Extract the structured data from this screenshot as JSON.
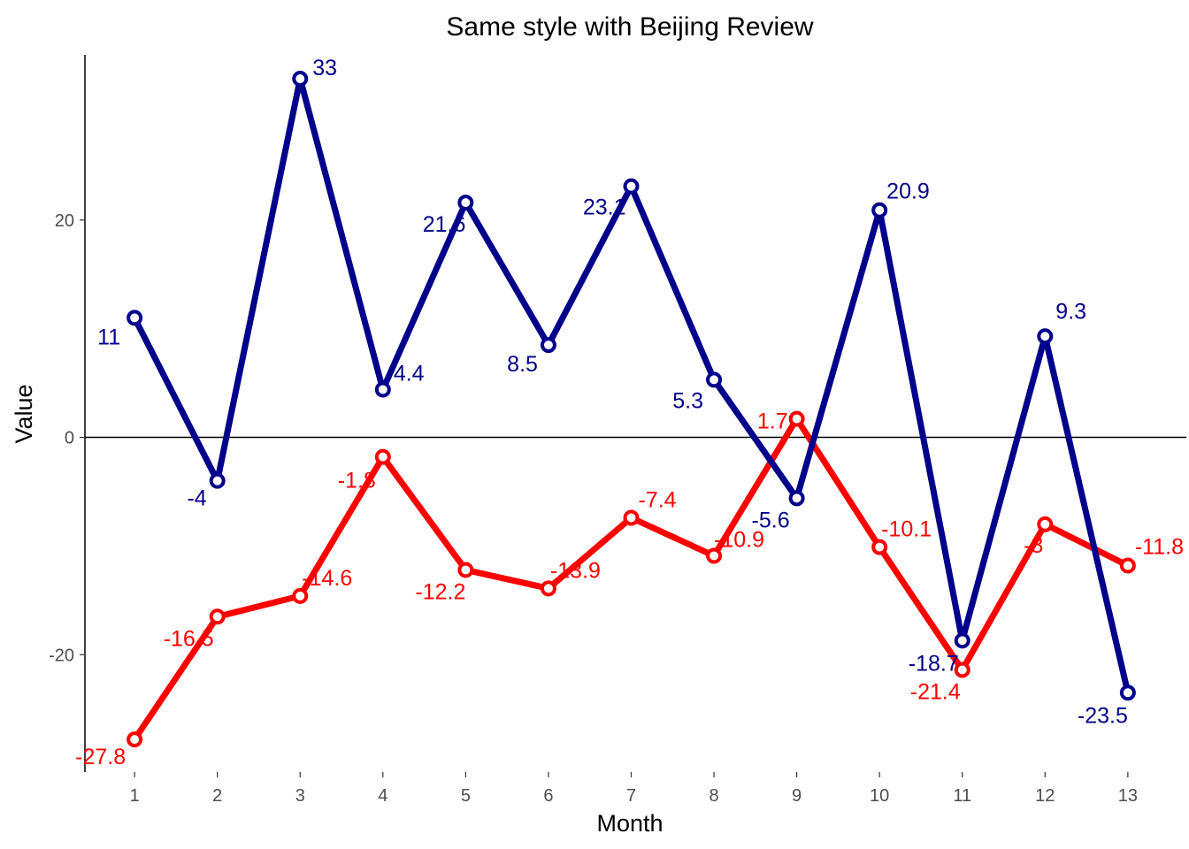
{
  "chart_data": {
    "type": "line",
    "title": "Same style with Beijing Review",
    "xlabel": "Month",
    "ylabel": "Value",
    "x": [
      1,
      2,
      3,
      4,
      5,
      6,
      7,
      8,
      9,
      10,
      11,
      12,
      13
    ],
    "x_tick_labels": [
      "1",
      "2",
      "3",
      "4",
      "5",
      "6",
      "7",
      "8",
      "9",
      "10",
      "11",
      "12",
      "13"
    ],
    "y_ticks": [
      -20,
      0,
      20
    ],
    "y_tick_labels": [
      "-20",
      "0",
      "20"
    ],
    "xlim": [
      0.4,
      13.6
    ],
    "ylim": [
      -30.8,
      35.2
    ],
    "zero_line": true,
    "grid": false,
    "legend": "none",
    "series": [
      {
        "color": "#00008b",
        "values": [
          11,
          -4,
          33,
          4.4,
          21.6,
          8.5,
          23.1,
          5.3,
          -5.6,
          20.9,
          -18.7,
          9.3,
          -23.5
        ],
        "labels": [
          "11",
          "-4",
          "33",
          "4.4",
          "21.6",
          "8.5",
          "23.1",
          "5.3",
          "-5.6",
          "20.9",
          "-18.7",
          "9.3",
          "-23.5"
        ]
      },
      {
        "color": "#ff0000",
        "values": [
          -27.8,
          -16.5,
          -14.6,
          -1.8,
          -12.2,
          -13.9,
          -7.4,
          -10.9,
          1.7,
          -10.1,
          -21.4,
          -8,
          -11.8
        ],
        "labels": [
          "-27.8",
          "-16.5",
          "-14.6",
          "-1.8",
          "-12.2",
          "-13.9",
          "-7.4",
          "-10.9",
          "1.7",
          "-10.1",
          "-21.4",
          "-8",
          "-11.8"
        ]
      }
    ]
  }
}
